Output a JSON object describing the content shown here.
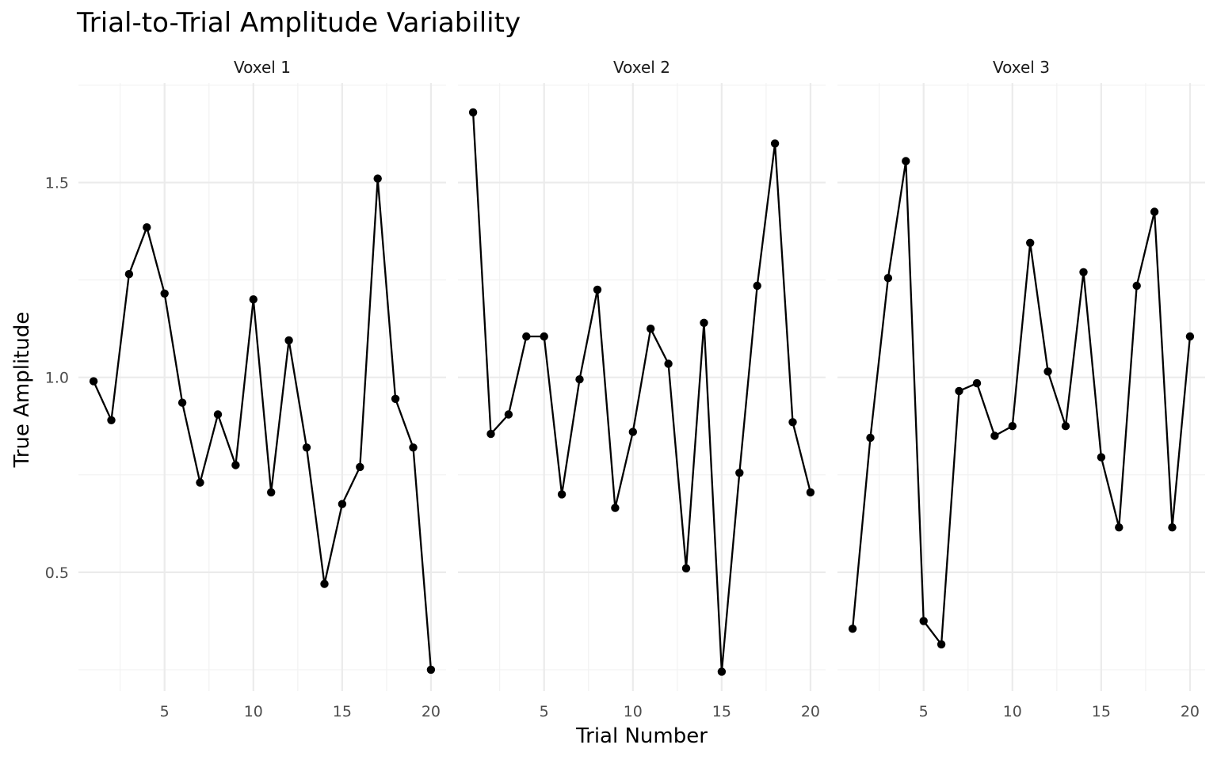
{
  "chart_data": {
    "type": "line",
    "title": "Trial-to-Trial Amplitude Variability",
    "xlabel": "Trial Number",
    "ylabel": "True Amplitude",
    "xlim": [
      0.15,
      20.85
    ],
    "ylim": [
      0.195,
      1.755
    ],
    "x_ticks": [
      5,
      10,
      15,
      20
    ],
    "y_ticks": [
      0.5,
      1.0,
      1.5
    ],
    "y_tick_labels": [
      "0.5",
      "1.0",
      "1.5"
    ],
    "grid": true,
    "legend": "none",
    "line_color": "#000000",
    "facets": [
      {
        "label": "Voxel 1",
        "x": [
          1,
          2,
          3,
          4,
          5,
          6,
          7,
          8,
          9,
          10,
          11,
          12,
          13,
          14,
          15,
          16,
          17,
          18,
          19,
          20
        ],
        "y": [
          0.99,
          0.89,
          1.265,
          1.385,
          1.215,
          0.935,
          0.73,
          0.905,
          0.775,
          1.2,
          0.705,
          1.095,
          0.82,
          0.47,
          0.675,
          0.77,
          1.51,
          0.945,
          0.82,
          0.25
        ]
      },
      {
        "label": "Voxel 2",
        "x": [
          1,
          2,
          3,
          4,
          5,
          6,
          7,
          8,
          9,
          10,
          11,
          12,
          13,
          14,
          15,
          16,
          17,
          18,
          19,
          20
        ],
        "y": [
          1.68,
          0.855,
          0.905,
          1.105,
          1.105,
          0.7,
          0.995,
          1.225,
          0.665,
          0.86,
          1.125,
          1.035,
          0.51,
          1.14,
          0.245,
          0.755,
          1.235,
          1.6,
          0.885,
          0.705
        ]
      },
      {
        "label": "Voxel 3",
        "x": [
          1,
          2,
          3,
          4,
          5,
          6,
          7,
          8,
          9,
          10,
          11,
          12,
          13,
          14,
          15,
          16,
          17,
          18,
          19,
          20
        ],
        "y": [
          0.355,
          0.845,
          1.255,
          1.555,
          0.375,
          0.315,
          0.965,
          0.985,
          0.85,
          0.875,
          1.345,
          1.015,
          0.875,
          1.27,
          0.795,
          0.615,
          1.235,
          1.425,
          0.615,
          1.105
        ]
      }
    ]
  }
}
